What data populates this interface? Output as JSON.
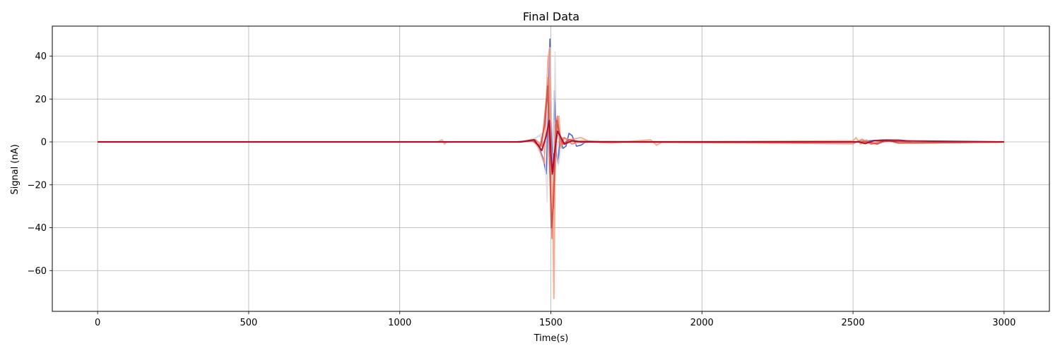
{
  "chart_data": {
    "type": "line",
    "title": "Final Data",
    "xlabel": "Time(s)",
    "ylabel": "Signal (nA)",
    "xlim": [
      -150,
      3150
    ],
    "ylim": [
      -79,
      54
    ],
    "xticks": [
      0,
      500,
      1000,
      1500,
      2000,
      2500,
      3000
    ],
    "yticks": [
      -60,
      -40,
      -20,
      0,
      20,
      40
    ],
    "grid": true,
    "legend": "none",
    "colormap": "coolwarm",
    "series": [
      {
        "color": "#3b4cc0",
        "width": 1.6,
        "opacity": 0.9,
        "points": [
          [
            0,
            0
          ],
          [
            1380,
            0
          ],
          [
            1420,
            0.5
          ],
          [
            1440,
            1
          ],
          [
            1460,
            -2
          ],
          [
            1475,
            -8
          ],
          [
            1485,
            -15
          ],
          [
            1492,
            20
          ],
          [
            1497,
            48
          ],
          [
            1502,
            5
          ],
          [
            1507,
            -14
          ],
          [
            1512,
            24
          ],
          [
            1518,
            -4
          ],
          [
            1524,
            -10
          ],
          [
            1530,
            2
          ],
          [
            1540,
            -3
          ],
          [
            1550,
            -2
          ],
          [
            1560,
            4
          ],
          [
            1570,
            3
          ],
          [
            1585,
            -2
          ],
          [
            1600,
            -1.5
          ],
          [
            1620,
            0.5
          ],
          [
            1650,
            0
          ],
          [
            1700,
            0.2
          ],
          [
            1800,
            0
          ],
          [
            2000,
            0
          ],
          [
            2500,
            0
          ],
          [
            2600,
            1
          ],
          [
            2650,
            1
          ],
          [
            2700,
            0.2
          ],
          [
            3000,
            0
          ]
        ]
      },
      {
        "color": "#aac7fd",
        "width": 1.4,
        "opacity": 0.7,
        "points": [
          [
            0,
            0
          ],
          [
            1400,
            0
          ],
          [
            1440,
            1
          ],
          [
            1465,
            3
          ],
          [
            1480,
            -6
          ],
          [
            1490,
            12
          ],
          [
            1495,
            30
          ],
          [
            1500,
            0
          ],
          [
            1505,
            -10
          ],
          [
            1512,
            10
          ],
          [
            1520,
            -2
          ],
          [
            1530,
            1
          ],
          [
            1560,
            0.5
          ],
          [
            1600,
            0
          ],
          [
            3000,
            0
          ]
        ]
      },
      {
        "color": "#dddcdc",
        "width": 1.6,
        "opacity": 0.85,
        "points": [
          [
            0,
            0
          ],
          [
            1400,
            0
          ],
          [
            1450,
            2
          ],
          [
            1470,
            4
          ],
          [
            1482,
            -10
          ],
          [
            1488,
            -28
          ],
          [
            1493,
            10
          ],
          [
            1498,
            44
          ],
          [
            1503,
            10
          ],
          [
            1509,
            -5
          ],
          [
            1514,
            42
          ],
          [
            1519,
            0
          ],
          [
            1525,
            -11
          ],
          [
            1532,
            -4
          ],
          [
            1540,
            2
          ],
          [
            1555,
            1
          ],
          [
            1580,
            -1
          ],
          [
            1620,
            0
          ],
          [
            1700,
            0.5
          ],
          [
            1850,
            0.3
          ],
          [
            3000,
            0
          ]
        ]
      },
      {
        "color": "#f4987a",
        "width": 2.0,
        "opacity": 0.8,
        "points": [
          [
            0,
            0
          ],
          [
            1125,
            0
          ],
          [
            1140,
            1
          ],
          [
            1148,
            -1
          ],
          [
            1155,
            0
          ],
          [
            1400,
            0
          ],
          [
            1440,
            1
          ],
          [
            1460,
            -3
          ],
          [
            1478,
            -10
          ],
          [
            1490,
            38
          ],
          [
            1496,
            44
          ],
          [
            1500,
            0
          ],
          [
            1505,
            -20
          ],
          [
            1510,
            -73
          ],
          [
            1514,
            -15
          ],
          [
            1520,
            5
          ],
          [
            1527,
            12
          ],
          [
            1533,
            -3
          ],
          [
            1540,
            2
          ],
          [
            1560,
            1
          ],
          [
            1600,
            2
          ],
          [
            1630,
            0
          ],
          [
            1700,
            -0.5
          ],
          [
            1830,
            1
          ],
          [
            1850,
            -1.5
          ],
          [
            1870,
            0
          ],
          [
            2500,
            0.5
          ],
          [
            2510,
            2
          ],
          [
            2525,
            -1
          ],
          [
            2545,
            1
          ],
          [
            2560,
            -1
          ],
          [
            2600,
            0.5
          ],
          [
            2700,
            -0.5
          ],
          [
            3000,
            0
          ]
        ]
      },
      {
        "color": "#e7745b",
        "width": 2.0,
        "opacity": 0.8,
        "points": [
          [
            0,
            0
          ],
          [
            1400,
            0
          ],
          [
            1450,
            1
          ],
          [
            1470,
            -2
          ],
          [
            1485,
            20
          ],
          [
            1492,
            30
          ],
          [
            1498,
            -12
          ],
          [
            1504,
            -45
          ],
          [
            1510,
            -20
          ],
          [
            1515,
            8
          ],
          [
            1522,
            12
          ],
          [
            1530,
            -2
          ],
          [
            1545,
            2
          ],
          [
            1570,
            -1
          ],
          [
            1600,
            0.5
          ],
          [
            1700,
            0
          ],
          [
            2500,
            -0.8
          ],
          [
            2530,
            1.2
          ],
          [
            2560,
            -1
          ],
          [
            2600,
            0
          ],
          [
            2640,
            1
          ],
          [
            2700,
            -0.5
          ],
          [
            3000,
            0
          ]
        ]
      },
      {
        "color": "#d24b40",
        "width": 2.2,
        "opacity": 0.85,
        "points": [
          [
            0,
            0
          ],
          [
            1400,
            0
          ],
          [
            1440,
            0.5
          ],
          [
            1465,
            -2
          ],
          [
            1480,
            8
          ],
          [
            1490,
            26
          ],
          [
            1496,
            -8
          ],
          [
            1502,
            -40
          ],
          [
            1508,
            -30
          ],
          [
            1514,
            -5
          ],
          [
            1520,
            10
          ],
          [
            1528,
            4
          ],
          [
            1540,
            -1
          ],
          [
            1560,
            1
          ],
          [
            1600,
            0
          ],
          [
            2550,
            0
          ],
          [
            2580,
            -1
          ],
          [
            2610,
            1
          ],
          [
            2650,
            -0.5
          ],
          [
            3000,
            0
          ]
        ]
      },
      {
        "color": "#b40426",
        "width": 2.0,
        "opacity": 0.95,
        "points": [
          [
            0,
            0
          ],
          [
            1400,
            0
          ],
          [
            1445,
            1
          ],
          [
            1470,
            -4
          ],
          [
            1485,
            3
          ],
          [
            1495,
            10
          ],
          [
            1500,
            -5
          ],
          [
            1505,
            -15
          ],
          [
            1510,
            -8
          ],
          [
            1515,
            -2
          ],
          [
            1522,
            5
          ],
          [
            1530,
            3
          ],
          [
            1545,
            -1
          ],
          [
            1570,
            0.5
          ],
          [
            1600,
            0
          ],
          [
            2520,
            0
          ],
          [
            2540,
            -0.8
          ],
          [
            2570,
            0.6
          ],
          [
            3000,
            0
          ]
        ]
      }
    ]
  }
}
